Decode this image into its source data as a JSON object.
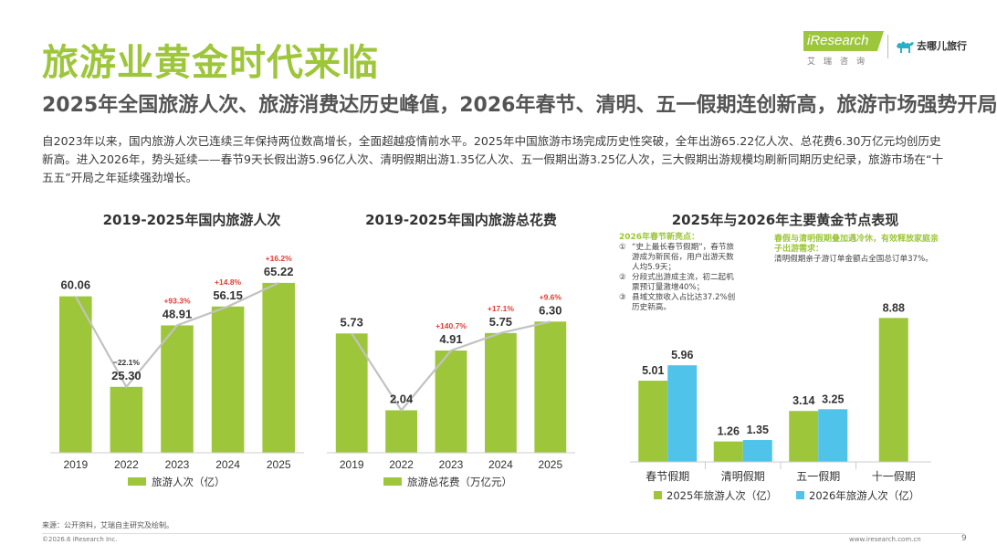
{
  "header": {
    "title": "旅游业黄金时代来临",
    "subtitle": "2025年全国旅游人次、旅游消费达历史峰值，2026年春节、清明、五一假期连创新高，旅游市场强势开局",
    "intro": "自2023年以来，国内旅游人次已连续三年保持两位数高增长，全面超越疫情前水平。2025年中国旅游市场完成历史性突破，全年出游65.22亿人次、总花费6.30万亿元均创历史新高。进入2026年，势头延续——春节9天长假出游5.96亿人次、清明假期出游1.35亿人次、五一假期出游3.25亿人次，三大假期出游规模均刷新同期历史纪录，旅游市场在“十五五”开局之年延续强劲增长。"
  },
  "logos": {
    "iresearch_word": "iResearch",
    "iresearch_sub": "艾瑞咨询",
    "qunar_name": "去哪儿旅行"
  },
  "chart_data": [
    {
      "type": "bar",
      "title": "2019-2025年国内旅游人次",
      "categories": [
        "2019",
        "2022",
        "2023",
        "2024",
        "2025"
      ],
      "series": [
        {
          "name": "旅游人次（亿）",
          "values": [
            60.06,
            25.3,
            48.91,
            56.15,
            65.22
          ]
        }
      ],
      "value_labels": [
        "60.06",
        "25.30",
        "48.91",
        "56.15",
        "65.22"
      ],
      "growth_labels": [
        "",
        "−22.1%",
        "+93.3%",
        "+14.8%",
        "+16.2%"
      ],
      "growth_colors": [
        "#333333",
        "#333333",
        "#e03c31",
        "#e03c31",
        "#e03c31"
      ],
      "ylim": [
        0,
        75
      ],
      "trend_line": true,
      "grid": false,
      "legend": "bottom",
      "colors": {
        "bar": "#9dc63b",
        "line": "#c2c2c2"
      }
    },
    {
      "type": "bar",
      "title": "2019-2025年国内旅游总花费",
      "categories": [
        "2019",
        "2022",
        "2023",
        "2024",
        "2025"
      ],
      "series": [
        {
          "name": "旅游总花费（万亿元）",
          "values": [
            5.73,
            2.04,
            4.91,
            5.75,
            6.3
          ]
        }
      ],
      "value_labels": [
        "5.73",
        "2.04",
        "4.91",
        "5.75",
        "6.30"
      ],
      "growth_labels": [
        "",
        "",
        "+140.7%",
        "+17.1%",
        "+9.6%"
      ],
      "growth_colors": [
        "#333333",
        "#333333",
        "#e03c31",
        "#e03c31",
        "#e03c31"
      ],
      "ylim": [
        0,
        8.33
      ],
      "trend_line": true,
      "grid": false,
      "legend": "bottom",
      "colors": {
        "bar": "#9dc63b",
        "line": "#c2c2c2"
      }
    },
    {
      "type": "bar",
      "title": "2025年与2026年主要黄金节点表现",
      "categories": [
        "春节假期",
        "清明假期",
        "五一假期",
        "十一假期"
      ],
      "series": [
        {
          "name": "2025年旅游人次（亿）",
          "values": [
            5.01,
            1.26,
            3.14,
            8.88
          ],
          "color": "#9dc63b"
        },
        {
          "name": "2026年旅游人次（亿）",
          "values": [
            5.96,
            1.35,
            3.25,
            null
          ],
          "color": "#4fc3ea"
        }
      ],
      "value_labels": [
        [
          "5.01",
          "1.26",
          "3.14",
          "8.88"
        ],
        [
          "5.96",
          "1.35",
          "3.25",
          ""
        ]
      ],
      "ylim": [
        0,
        10.7
      ],
      "grid": false,
      "legend": "bottom",
      "notes": {
        "spring_head": "2026年春节新亮点：",
        "spring_items": [
          {
            "num": "①",
            "text": "“史上最长春节假期”，春节旅游成为新民俗，用户出游天数人均5.9天；"
          },
          {
            "num": "②",
            "text": "分段式出游成主流，初二起机票预订量激增40%；"
          },
          {
            "num": "③",
            "text": "县域文旅收入占比达37.2%创历史新高。"
          }
        ],
        "qingming_head": "春假与清明假期叠加遇冷休，有效释放家庭亲子出游需求：",
        "qingming_text": "清明假期亲子游订单金额占全国总订单37%。"
      }
    }
  ],
  "footer": {
    "source": "来源：公开资料，艾瑞自主研究及绘制。",
    "copyright": "©2026.6 iResearch Inc.",
    "url": "www.iresearch.com.cn",
    "page": "9"
  }
}
